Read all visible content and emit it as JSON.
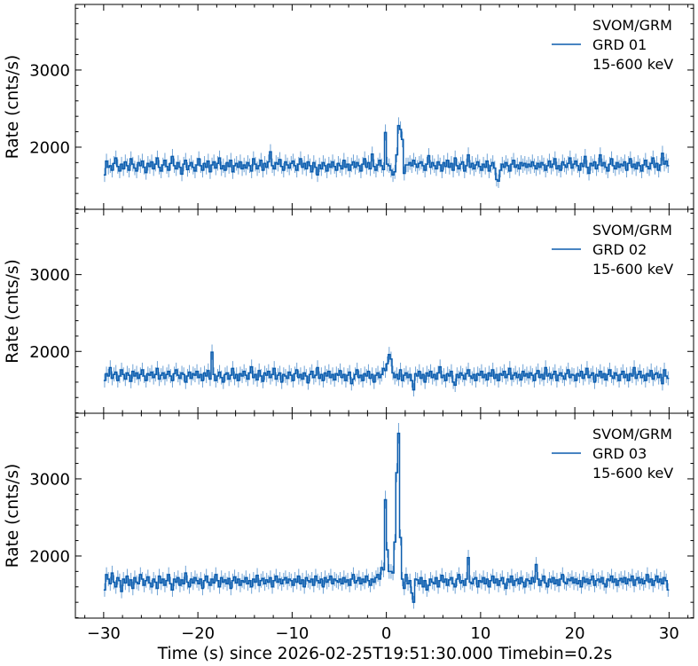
{
  "colors": {
    "line": "#0b5cad",
    "errorbar": "#6fa3d6"
  },
  "xlabel": "Time (s) since 2026-02-25T19:51:30.000 Timebin=0.2s",
  "xlim": [
    -33,
    32.6
  ],
  "xticks": [
    -30,
    -20,
    -10,
    0,
    10,
    20,
    30
  ],
  "xtick_labels": [
    "−30",
    "−20",
    "−10",
    "0",
    "10",
    "20",
    "30"
  ],
  "chart_data": [
    {
      "type": "line",
      "drawstyle": "steps",
      "ylabel": "Rate (cnts/s)",
      "ylim": [
        1195,
        3850
      ],
      "yticks": [
        2000,
        3000
      ],
      "ytick_labels": [
        "2000",
        "3000"
      ],
      "legend": [
        "SVOM/GRM",
        "GRD 01",
        "15-600 keV"
      ],
      "legend_position": "top-right",
      "x_start": -30,
      "timebin": 0.2,
      "values": [
        1640,
        1820,
        1740,
        1760,
        1700,
        1790,
        1860,
        1750,
        1690,
        1780,
        1720,
        1810,
        1760,
        1700,
        1850,
        1780,
        1730,
        1690,
        1800,
        1760,
        1820,
        1740,
        1670,
        1790,
        1750,
        1810,
        1720,
        1780,
        1860,
        1740,
        1690,
        1770,
        1830,
        1750,
        1700,
        1790,
        1880,
        1760,
        1720,
        1800,
        1740,
        1650,
        1780,
        1830,
        1710,
        1760,
        1800,
        1740,
        1690,
        1770,
        1850,
        1760,
        1700,
        1790,
        1740,
        1820,
        1680,
        1770,
        1810,
        1730,
        1790,
        1860,
        1720,
        1760,
        1700,
        1800,
        1750,
        1830,
        1680,
        1760,
        1790,
        1740,
        1810,
        1720,
        1770,
        1730,
        1800,
        1760,
        1690,
        1850,
        1780,
        1720,
        1760,
        1830,
        1700,
        1790,
        1740,
        1810,
        1940,
        1760,
        1720,
        1800,
        1780,
        1840,
        1750,
        1700,
        1810,
        1770,
        1730,
        1790,
        1820,
        1760,
        1700,
        1780,
        1850,
        1740,
        1790,
        1720,
        1810,
        1760,
        1680,
        1800,
        1740,
        1640,
        1770,
        1720,
        1800,
        1760,
        1690,
        1780,
        1740,
        1810,
        1750,
        1700,
        1790,
        1760,
        1720,
        1830,
        1740,
        1780,
        1700,
        1770,
        1810,
        1740,
        1800,
        1760,
        1690,
        1780,
        1850,
        1740,
        1800,
        1720,
        1910,
        1750,
        1700,
        1770,
        1830,
        1760,
        1710,
        2190,
        1780,
        1760,
        1700,
        1640,
        1680,
        1900,
        2280,
        2230,
        2100,
        1660,
        1770,
        1770,
        1800,
        1760,
        1830,
        1780,
        1740,
        1790,
        1810,
        1760,
        1700,
        1780,
        1890,
        1740,
        1800,
        1760,
        1720,
        1810,
        1770,
        1690,
        1800,
        1750,
        1830,
        1740,
        1790,
        1700,
        1860,
        1760,
        1720,
        1780,
        1810,
        1690,
        1760,
        1900,
        1740,
        1790,
        1720,
        1770,
        1810,
        1750,
        1700,
        1780,
        1740,
        1820,
        1690,
        1760,
        1800,
        1730,
        1580,
        1560,
        1700,
        1780,
        1740,
        1800,
        1760,
        1690,
        1780,
        1830,
        1740,
        1770,
        1720,
        1800,
        1760,
        1790,
        1740,
        1780,
        1750,
        1810,
        1760,
        1720,
        1790,
        1740,
        1800,
        1770,
        1700,
        1760,
        1820,
        1740,
        1780,
        1850,
        1720,
        1760,
        1700,
        1810,
        1770,
        1740,
        1790,
        1860,
        1730,
        1780,
        1820,
        1760,
        1700,
        1790,
        1750,
        1880,
        1740,
        1660,
        1790,
        1760,
        1810,
        1720,
        1770,
        1900,
        1760,
        1800,
        1740,
        1690,
        1780,
        1850,
        1760,
        1720,
        1800,
        1740,
        1780,
        1760,
        1810,
        1700,
        1790,
        1850,
        1740,
        1780,
        1720,
        1800,
        1760,
        1690,
        1770,
        1830,
        1750,
        1720,
        1790,
        1860,
        1740,
        1790,
        1700,
        1770,
        1920,
        1780,
        1820,
        1760
      ]
    },
    {
      "type": "line",
      "drawstyle": "steps",
      "ylabel": "Rate (cnts/s)",
      "ylim": [
        1195,
        3850
      ],
      "yticks": [
        2000,
        3000
      ],
      "ytick_labels": [
        "2000",
        "3000"
      ],
      "legend": [
        "SVOM/GRM",
        "GRD 02",
        "15-600 keV"
      ],
      "legend_position": "top-right",
      "x_start": -30,
      "timebin": 0.2,
      "values": [
        1620,
        1710,
        1680,
        1790,
        1650,
        1700,
        1730,
        1620,
        1680,
        1760,
        1700,
        1640,
        1720,
        1690,
        1610,
        1740,
        1680,
        1720,
        1650,
        1700,
        1760,
        1680,
        1620,
        1710,
        1690,
        1730,
        1660,
        1700,
        1780,
        1640,
        1690,
        1720,
        1650,
        1700,
        1740,
        1680,
        1620,
        1710,
        1760,
        1690,
        1650,
        1720,
        1700,
        1600,
        1680,
        1730,
        1650,
        1710,
        1690,
        1740,
        1660,
        1700,
        1620,
        1720,
        1680,
        1750,
        1640,
        1990,
        1700,
        1620,
        1680,
        1730,
        1660,
        1600,
        1700,
        1720,
        1640,
        1690,
        1780,
        1650,
        1700,
        1620,
        1710,
        1680,
        1740,
        1690,
        1640,
        1720,
        1800,
        1660,
        1700,
        1630,
        1750,
        1680,
        1610,
        1720,
        1690,
        1740,
        1660,
        1700,
        1780,
        1640,
        1690,
        1720,
        1600,
        1700,
        1680,
        1650,
        1730,
        1690,
        1620,
        1710,
        1760,
        1660,
        1700,
        1640,
        1720,
        1680,
        1590,
        1700,
        1740,
        1660,
        1690,
        1790,
        1650,
        1700,
        1620,
        1720,
        1680,
        1740,
        1660,
        1700,
        1630,
        1710,
        1690,
        1750,
        1660,
        1700,
        1620,
        1690,
        1730,
        1580,
        1640,
        1700,
        1760,
        1660,
        1690,
        1620,
        1710,
        1680,
        1740,
        1650,
        1700,
        1600,
        1690,
        1720,
        1660,
        1700,
        1780,
        1750,
        1840,
        1960,
        1900,
        1720,
        1660,
        1700,
        1640,
        1760,
        1620,
        1690,
        1720,
        1660,
        1700,
        1620,
        1500,
        1710,
        1680,
        1740,
        1650,
        1700,
        1600,
        1720,
        1680,
        1740,
        1660,
        1700,
        1640,
        1720,
        1800,
        1660,
        1690,
        1620,
        1710,
        1680,
        1740,
        1600,
        1560,
        1700,
        1660,
        1720,
        1690,
        1640,
        1710,
        1760,
        1680,
        1650,
        1700,
        1620,
        1710,
        1690,
        1740,
        1660,
        1700,
        1630,
        1720,
        1680,
        1760,
        1650,
        1700,
        1620,
        1710,
        1690,
        1740,
        1660,
        1700,
        1780,
        1640,
        1690,
        1720,
        1660,
        1700,
        1630,
        1740,
        1680,
        1710,
        1660,
        1720,
        1690,
        1620,
        1710,
        1750,
        1660,
        1700,
        1640,
        1790,
        1680,
        1710,
        1650,
        1700,
        1740,
        1620,
        1690,
        1720,
        1680,
        1640,
        1710,
        1760,
        1660,
        1700,
        1690,
        1620,
        1710,
        1680,
        1740,
        1650,
        1700,
        1780,
        1660,
        1690,
        1720,
        1600,
        1700,
        1680,
        1740,
        1660,
        1710,
        1630,
        1700,
        1760,
        1680,
        1650,
        1720,
        1690,
        1620,
        1700,
        1740,
        1660,
        1700,
        1620,
        1710,
        1680,
        1790,
        1650,
        1700,
        1740,
        1660,
        1690,
        1620,
        1710,
        1680,
        1750,
        1640,
        1700,
        1720,
        1660,
        1700,
        1580,
        1760,
        1680,
        1650
      ]
    },
    {
      "type": "line",
      "drawstyle": "steps",
      "ylabel": "Rate (cnts/s)",
      "ylim": [
        1195,
        3850
      ],
      "yticks": [
        2000,
        3000
      ],
      "ytick_labels": [
        "2000",
        "3000"
      ],
      "legend": [
        "SVOM/GRM",
        "GRD 03",
        "15-600 keV"
      ],
      "legend_position": "top-right",
      "x_start": -30,
      "timebin": 0.2,
      "values": [
        1560,
        1760,
        1700,
        1640,
        1780,
        1660,
        1600,
        1720,
        1680,
        1540,
        1700,
        1650,
        1740,
        1620,
        1690,
        1580,
        1720,
        1660,
        1640,
        1760,
        1700,
        1620,
        1680,
        1730,
        1650,
        1600,
        1700,
        1660,
        1580,
        1740,
        1650,
        1700,
        1620,
        1680,
        1760,
        1640,
        1560,
        1700,
        1660,
        1720,
        1620,
        1690,
        1640,
        1780,
        1660,
        1600,
        1700,
        1650,
        1720,
        1680,
        1640,
        1700,
        1580,
        1680,
        1740,
        1660,
        1620,
        1700,
        1650,
        1760,
        1680,
        1600,
        1720,
        1660,
        1690,
        1640,
        1710,
        1580,
        1680,
        1730,
        1650,
        1700,
        1620,
        1680,
        1660,
        1720,
        1640,
        1680,
        1600,
        1700,
        1660,
        1750,
        1620,
        1680,
        1710,
        1640,
        1690,
        1660,
        1720,
        1600,
        1680,
        1740,
        1660,
        1700,
        1640,
        1690,
        1720,
        1650,
        1700,
        1680,
        1620,
        1700,
        1660,
        1740,
        1640,
        1690,
        1600,
        1720,
        1680,
        1660,
        1700,
        1620,
        1740,
        1680,
        1650,
        1700,
        1600,
        1720,
        1660,
        1690,
        1740,
        1640,
        1700,
        1680,
        1660,
        1700,
        1640,
        1720,
        1660,
        1690,
        1620,
        1700,
        1760,
        1650,
        1680,
        1720,
        1640,
        1700,
        1660,
        1740,
        1680,
        1620,
        1700,
        1660,
        1720,
        1760,
        1700,
        1850,
        1820,
        2730,
        2080,
        1800,
        1800,
        1780,
        2180,
        3080,
        3590,
        2240,
        1700,
        1580,
        1760,
        1640,
        1680,
        1520,
        1400,
        1700,
        1690,
        1640,
        1720,
        1600,
        1680,
        1560,
        1620,
        1700,
        1660,
        1640,
        1720,
        1600,
        1680,
        1750,
        1660,
        1700,
        1620,
        1690,
        1720,
        1640,
        1600,
        1700,
        1760,
        1650,
        1680,
        1620,
        1700,
        1980,
        1660,
        1640,
        1700,
        1720,
        1600,
        1680,
        1660,
        1720,
        1640,
        1700,
        1600,
        1680,
        1740,
        1650,
        1700,
        1620,
        1680,
        1720,
        1640,
        1580,
        1700,
        1660,
        1740,
        1620,
        1680,
        1700,
        1640,
        1720,
        1660,
        1600,
        1700,
        1680,
        1640,
        1720,
        1660,
        1890,
        1700,
        1620,
        1680,
        1740,
        1650,
        1600,
        1700,
        1660,
        1720,
        1640,
        1690,
        1620,
        1700,
        1760,
        1660,
        1640,
        1700,
        1680,
        1720,
        1650,
        1700,
        1640,
        1680,
        1600,
        1720,
        1660,
        1700,
        1640,
        1690,
        1740,
        1620,
        1680,
        1700,
        1660,
        1720,
        1640,
        1600,
        1700,
        1680,
        1740,
        1660,
        1700,
        1620,
        1680,
        1710,
        1660,
        1720,
        1640,
        1700,
        1680,
        1740,
        1620,
        1690,
        1720,
        1650,
        1700,
        1640,
        1680,
        1760,
        1660,
        1700,
        1620,
        1680,
        1740,
        1660,
        1700,
        1640,
        1720,
        1680,
        1560
      ]
    }
  ]
}
